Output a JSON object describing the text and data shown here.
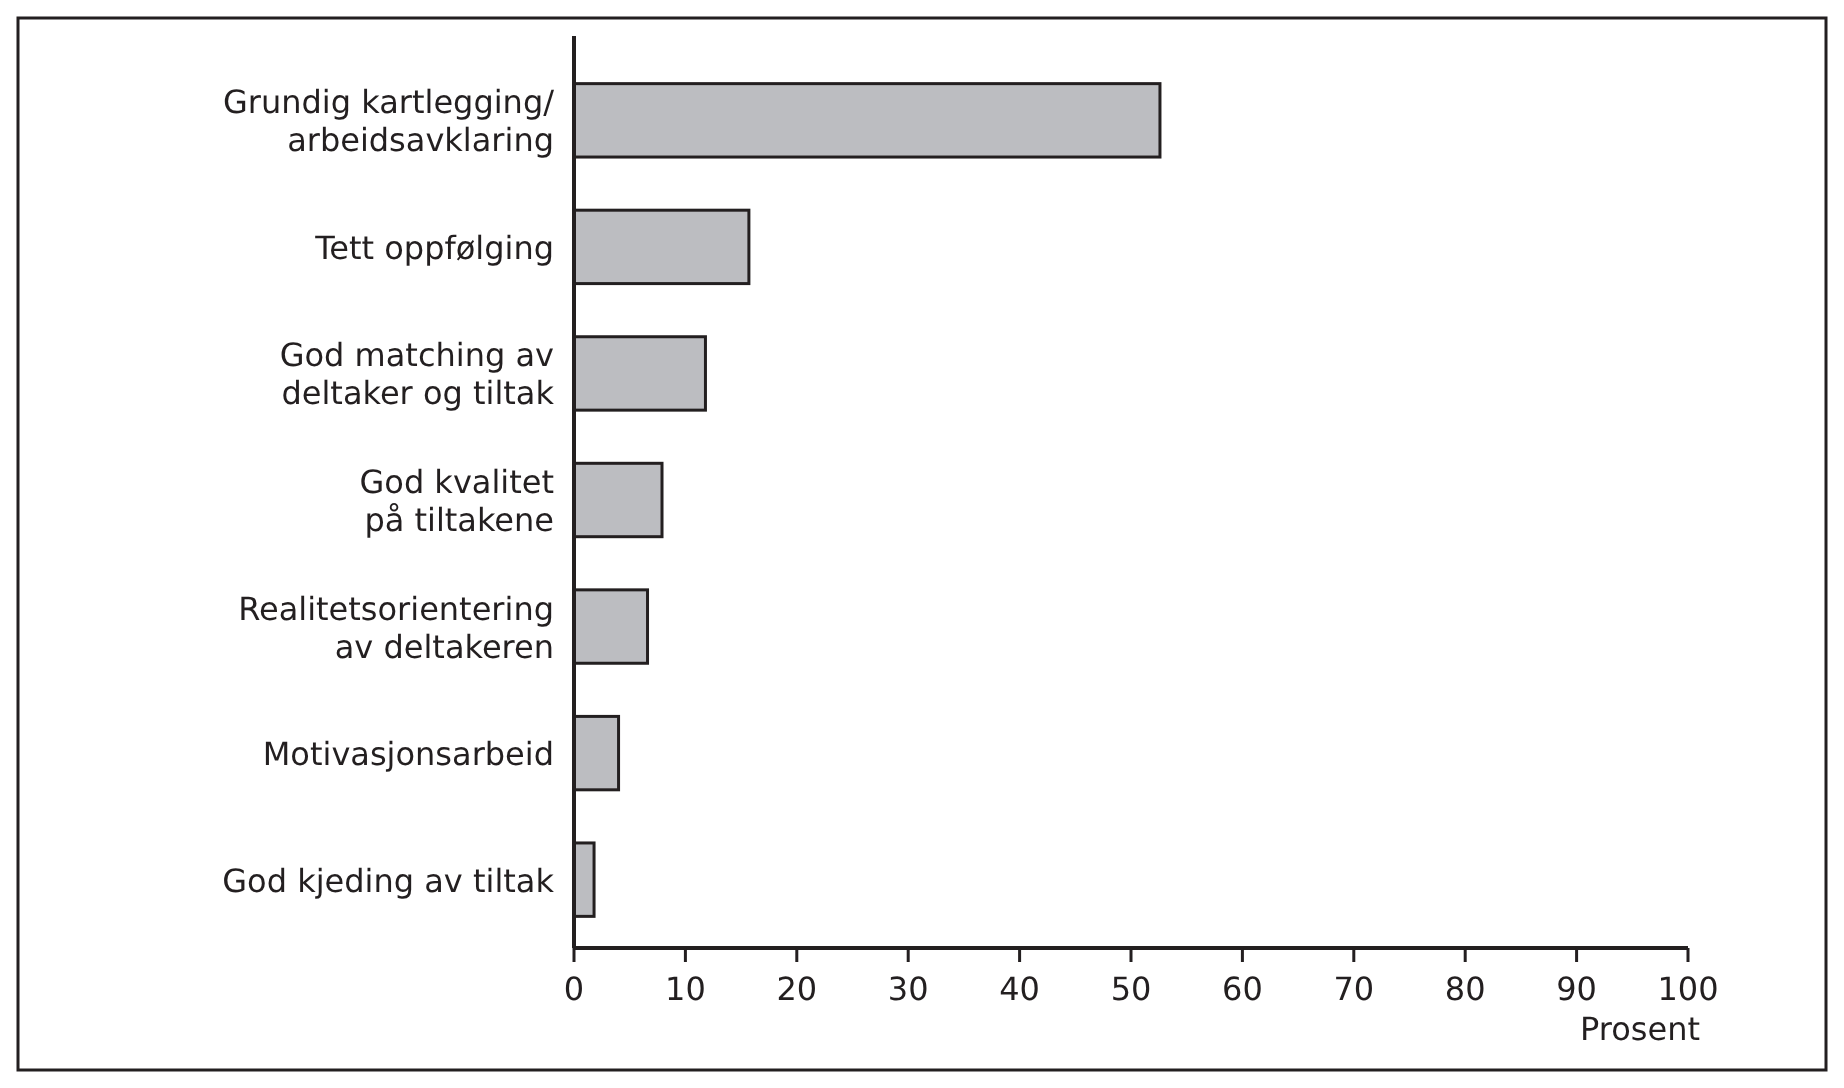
{
  "chart_data": {
    "type": "bar",
    "orientation": "horizontal",
    "xlabel": "Prosent",
    "categories": [
      "Grundig kartlegging/\narbeidsavklaring",
      "Tett oppfølging",
      "God matching av\ndeltaker og tiltak",
      "God kvalitet\npå tiltakene",
      "Realitetsorientering\nav deltakeren",
      "Motivasjonsarbeid",
      "God kjeding av tiltak"
    ],
    "values": [
      52.6,
      15.7,
      11.8,
      7.9,
      6.6,
      4.0,
      1.8
    ],
    "color": "#bcbdc1",
    "xlim": [
      0,
      100
    ],
    "xticks": [
      0,
      10,
      20,
      30,
      40,
      50,
      60,
      70,
      80,
      90,
      100
    ],
    "grid": false
  }
}
